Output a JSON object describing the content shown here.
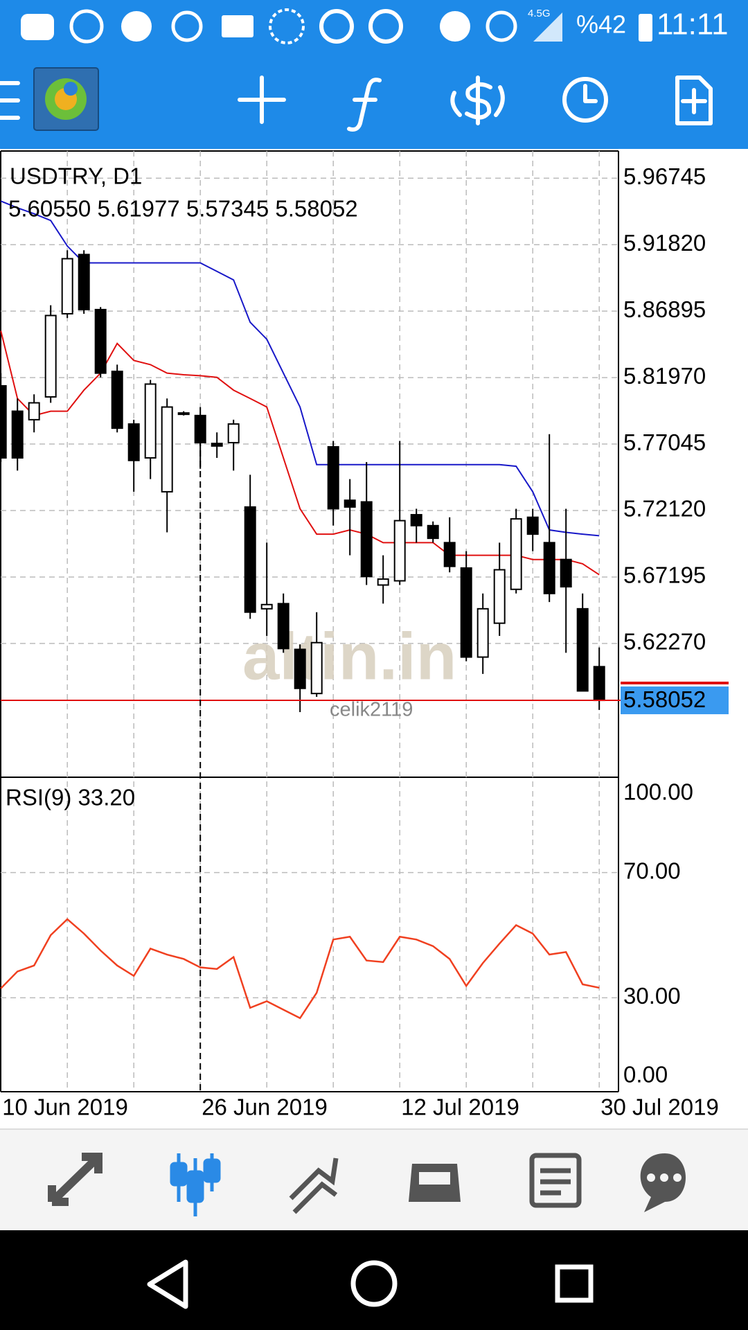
{
  "status_bar": {
    "network": "4.5G",
    "battery": "%42",
    "time": "11:11"
  },
  "chart_data": [
    {
      "type": "candlestick",
      "title": "USDTRY, D1",
      "subtitle": "5.60550 5.61977 5.57345 5.58052",
      "watermark": "altin.in",
      "user": "celik2119",
      "categories": [
        "10 Jun 2019",
        null,
        null,
        null,
        null,
        null,
        null,
        null,
        null,
        null,
        null,
        null,
        "26 Jun 2019",
        null,
        null,
        null,
        null,
        null,
        null,
        null,
        null,
        null,
        null,
        null,
        "12 Jul 2019",
        null,
        null,
        null,
        null,
        null,
        null,
        null,
        null,
        null,
        null,
        null,
        "30 Jul 2019"
      ],
      "open": [
        5.8136,
        5.7948,
        5.7885,
        5.8054,
        5.867,
        5.9109,
        5.8701,
        5.8243,
        5.7853,
        5.7602,
        5.7351,
        5.7935,
        5.7916,
        5.7709,
        5.7715,
        5.7238,
        5.6484,
        5.6522,
        5.6183,
        5.5856,
        5.7684,
        5.7288,
        5.7276,
        5.666,
        5.6691,
        5.7181,
        5.71,
        5.6974,
        5.6786,
        5.6126,
        5.6377,
        5.6628,
        5.7162,
        5.6974,
        5.6849,
        5.6484,
        5.6055
      ],
      "high": [
        5.823,
        5.8042,
        5.8073,
        5.8733,
        5.9141,
        5.9141,
        5.872,
        5.8293,
        5.7885,
        5.818,
        5.8042,
        5.7948,
        5.7979,
        5.7791,
        5.7885,
        5.7477,
        5.6974,
        5.6597,
        5.622,
        5.6459,
        5.7728,
        5.7445,
        5.7571,
        5.688,
        5.7728,
        5.7225,
        5.7131,
        5.7162,
        5.6911,
        5.6597,
        5.6974,
        5.7225,
        5.7225,
        5.7778,
        5.7225,
        5.6597,
        5.61977
      ],
      "low": [
        5.7571,
        5.7508,
        5.7791,
        5.801,
        5.8638,
        5.867,
        5.8199,
        5.7791,
        5.7351,
        5.7445,
        5.705,
        5.7916,
        5.7521,
        5.7602,
        5.7508,
        5.6409,
        5.6283,
        5.6158,
        5.5718,
        5.5831,
        5.71,
        5.688,
        5.666,
        5.6522,
        5.666,
        5.6974,
        5.6974,
        5.6754,
        5.6095,
        5.6001,
        5.6283,
        5.6597,
        5.6911,
        5.6534,
        5.6158,
        5.5875,
        5.57345
      ],
      "close": [
        5.7602,
        5.7602,
        5.801,
        5.8657,
        5.9078,
        5.8701,
        5.823,
        5.7822,
        5.7583,
        5.8149,
        5.7979,
        5.7935,
        5.7715,
        5.769,
        5.7853,
        5.6459,
        5.6515,
        5.6189,
        5.5894,
        5.6233,
        5.7225,
        5.7238,
        5.6723,
        5.6704,
        5.7137,
        5.71,
        5.7006,
        5.6798,
        5.6126,
        5.6484,
        5.6773,
        5.715,
        5.7037,
        5.6597,
        5.6647,
        5.5875,
        5.58052
      ],
      "lines": [
        {
          "color": "#e01010",
          "values": [
            5.8544,
            5.8042,
            5.7916,
            5.7948,
            5.7948,
            5.8104,
            5.823,
            5.845,
            5.8324,
            5.8293,
            5.823,
            5.8218,
            5.8211,
            5.8199,
            5.8104,
            5.8042,
            5.7979,
            5.7602,
            5.7225,
            5.7037,
            5.7037,
            5.7068,
            5.7037,
            5.6974,
            5.6974,
            5.6974,
            5.6974,
            5.688,
            5.688,
            5.688,
            5.688,
            5.688,
            5.6849,
            5.6849,
            5.6849,
            5.6817,
            5.6736
          ]
        },
        {
          "color": "#1818c8",
          "values": [
            5.9505,
            5.9455,
            5.9411,
            5.9361,
            5.9172,
            5.9047,
            5.9047,
            5.9047,
            5.9047,
            5.9047,
            5.9047,
            5.9047,
            5.9047,
            5.8984,
            5.8921,
            5.8607,
            5.8481,
            5.823,
            5.7979,
            5.7552,
            5.7552,
            5.7552,
            5.7552,
            5.7552,
            5.7552,
            5.7552,
            5.7552,
            5.7552,
            5.7552,
            5.7552,
            5.7552,
            5.754,
            5.7351,
            5.7068,
            5.705,
            5.7037,
            5.7025
          ]
        }
      ],
      "last_price": 5.58052,
      "last_price_color": "#e01010",
      "ylim": [
        5.5246,
        5.9876
      ],
      "yticks": [
        5.96745,
        {
          "value": 5.9182,
          "label": "5.91820"
        },
        5.86895,
        {
          "value": 5.8197,
          "label": "5.81970"
        },
        5.77045,
        {
          "value": 5.7212,
          "label": "5.72120"
        },
        5.67195,
        {
          "value": 5.6227,
          "label": "5.62270"
        }
      ],
      "grid": true
    },
    {
      "type": "line",
      "title": "RSI(9) 33.20",
      "color": "#f04020",
      "values": [
        33.0,
        38.4,
        40.3,
        50.0,
        55.1,
        50.5,
        45.1,
        40.3,
        37.0,
        45.7,
        43.8,
        42.4,
        39.7,
        39.2,
        43.0,
        26.8,
        28.9,
        26.2,
        23.5,
        31.6,
        48.6,
        49.5,
        41.9,
        41.4,
        49.5,
        48.6,
        46.5,
        42.4,
        33.8,
        41.1,
        47.3,
        53.2,
        50.5,
        43.8,
        44.6,
        34.3,
        33.2
      ],
      "ylim": [
        0,
        100
      ],
      "yticks": [
        {
          "value": 100,
          "label": "100.00"
        },
        {
          "value": 70,
          "label": "70.00"
        },
        {
          "value": 30,
          "label": "30.00"
        },
        {
          "value": 0,
          "label": "0.00"
        }
      ],
      "grid": true
    }
  ]
}
